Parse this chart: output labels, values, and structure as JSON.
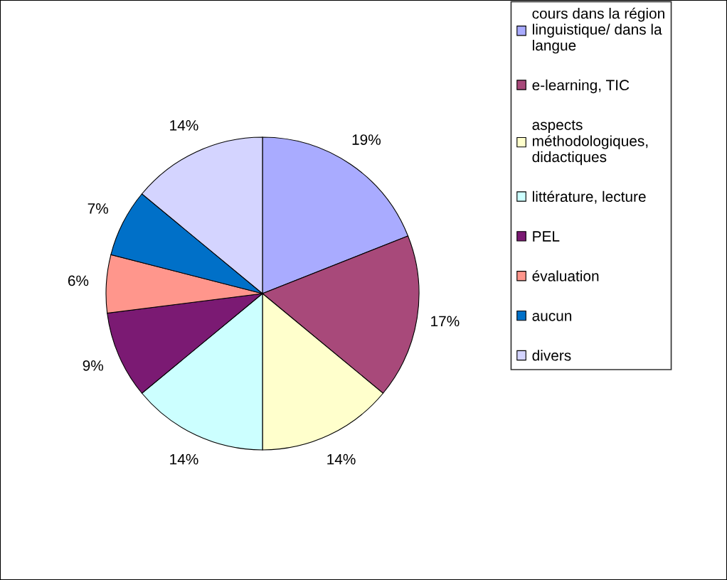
{
  "chart_data": {
    "type": "pie",
    "categories": [
      "cours dans la région\nlinguistique/ dans la\nlangue",
      "e-learning, TIC",
      "aspects\nméthodologiques,\ndidactiques",
      "littérature, lecture",
      "PEL",
      "évaluation",
      "aucun",
      "divers"
    ],
    "values": [
      19,
      17,
      14,
      14,
      9,
      6,
      7,
      14
    ],
    "value_labels": [
      "19%",
      "17%",
      "14%",
      "14%",
      "9%",
      "6%",
      "7%",
      "14%"
    ],
    "colors": [
      "#a9abff",
      "#a8497a",
      "#ffffcc",
      "#ccffff",
      "#7b1a73",
      "#ff968c",
      "#0070c8",
      "#d4d4ff"
    ],
    "legend": "right"
  }
}
